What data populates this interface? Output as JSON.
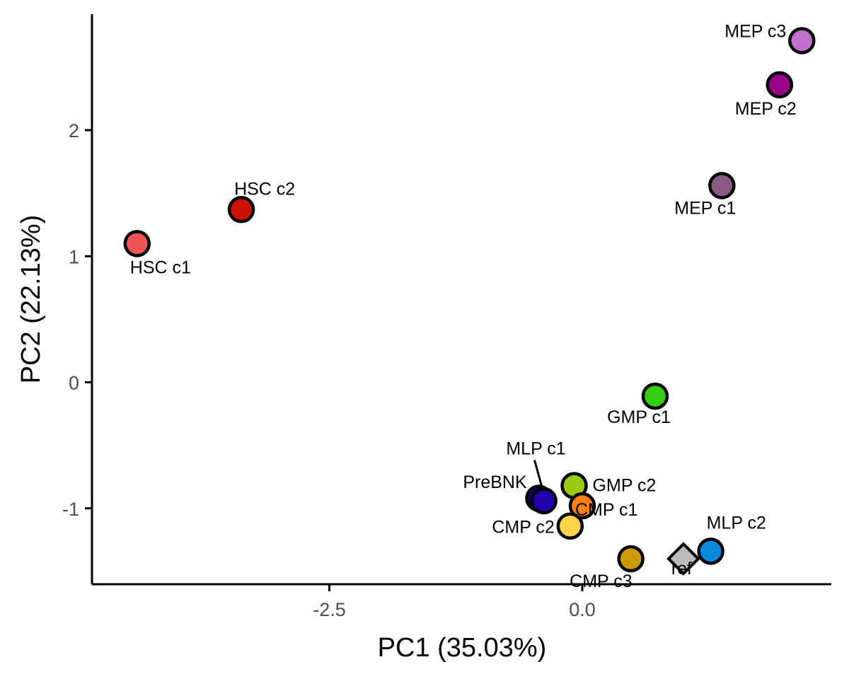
{
  "chart_data": {
    "type": "scatter",
    "title": "",
    "xlabel": "PC1 (35.03%)",
    "ylabel": "PC2 (22.13%)",
    "xlim": [
      -4.7,
      2.45
    ],
    "ylim": [
      -1.6,
      2.9
    ],
    "xticks": [
      -2.5,
      0.0
    ],
    "xtick_labels": [
      "-2.5",
      "0.0"
    ],
    "yticks": [
      -1,
      0,
      1,
      2
    ],
    "ytick_labels": [
      "-1",
      "0",
      "1",
      "2"
    ],
    "grid": false,
    "legend": "none",
    "points": [
      {
        "label": "HSC c1",
        "x": -4.4,
        "y": 1.1,
        "color": "#f05555",
        "shape": "circle"
      },
      {
        "label": "HSC c2",
        "x": -3.37,
        "y": 1.37,
        "color": "#cc1100",
        "shape": "circle"
      },
      {
        "label": "MEP c1",
        "x": 1.38,
        "y": 1.56,
        "color": "#8b5a86",
        "shape": "circle"
      },
      {
        "label": "MEP c2",
        "x": 1.95,
        "y": 2.36,
        "color": "#990088",
        "shape": "circle"
      },
      {
        "label": "MEP c3",
        "x": 2.17,
        "y": 2.71,
        "color": "#c070cc",
        "shape": "circle"
      },
      {
        "label": "GMP c1",
        "x": 0.72,
        "y": -0.11,
        "color": "#33cc11",
        "shape": "circle"
      },
      {
        "label": "GMP c2",
        "x": -0.08,
        "y": -0.82,
        "color": "#99cc11",
        "shape": "circle"
      },
      {
        "label": "CMP c1",
        "x": 0.0,
        "y": -0.98,
        "color": "#ff7f11",
        "shape": "circle"
      },
      {
        "label": "CMP c2",
        "x": -0.12,
        "y": -1.14,
        "color": "#ffd44d",
        "shape": "circle"
      },
      {
        "label": "CMP c3",
        "x": 0.48,
        "y": -1.4,
        "color": "#cc9900",
        "shape": "circle"
      },
      {
        "label": "MLP c1",
        "x": -0.43,
        "y": -0.92,
        "color": "#1a0080",
        "shape": "circle"
      },
      {
        "label": "PreBNK",
        "x": -0.38,
        "y": -0.94,
        "color": "#2200aa",
        "shape": "circle"
      },
      {
        "label": "MLP c2",
        "x": 1.27,
        "y": -1.34,
        "color": "#0a88dd",
        "shape": "circle"
      },
      {
        "label": "ref",
        "x": 1.0,
        "y": -1.4,
        "color": "#bbbbbb",
        "shape": "diamond"
      }
    ],
    "point_labels": [
      {
        "text": "HSC c1",
        "x": -4.4,
        "y": 1.1,
        "anchor": "below-right"
      },
      {
        "text": "HSC c2",
        "x": -3.37,
        "y": 1.37,
        "anchor": "above-right"
      },
      {
        "text": "MEP c1",
        "x": 1.38,
        "y": 1.56,
        "anchor": "below-left"
      },
      {
        "text": "MEP c2",
        "x": 1.95,
        "y": 2.36,
        "anchor": "below-left"
      },
      {
        "text": "MEP c3",
        "x": 2.17,
        "y": 2.71,
        "anchor": "left"
      },
      {
        "text": "GMP c1",
        "x": 0.72,
        "y": -0.11,
        "anchor": "below-left"
      },
      {
        "text": "GMP c2",
        "x": -0.08,
        "y": -0.82,
        "anchor": "right"
      },
      {
        "text": "CMP c1",
        "x": 0.0,
        "y": -0.98,
        "anchor": "below-right"
      },
      {
        "text": "CMP c2",
        "x": -0.12,
        "y": -1.14,
        "anchor": "left"
      },
      {
        "text": "CMP c3",
        "x": 0.48,
        "y": -1.4,
        "anchor": "below-left"
      },
      {
        "text": "MLP c1",
        "x": -0.43,
        "y": -0.92,
        "anchor": "above-callout"
      },
      {
        "text": "PreBNK",
        "x": -0.38,
        "y": -0.94,
        "anchor": "left"
      },
      {
        "text": "MLP c2",
        "x": 1.27,
        "y": -1.34,
        "anchor": "above-right"
      },
      {
        "text": "ref",
        "x": 1.0,
        "y": -1.4,
        "anchor": "below-left"
      }
    ],
    "colors": {
      "axis": "#000000",
      "tick_label": "#4d4d4d",
      "point_outline": "#000000"
    }
  }
}
